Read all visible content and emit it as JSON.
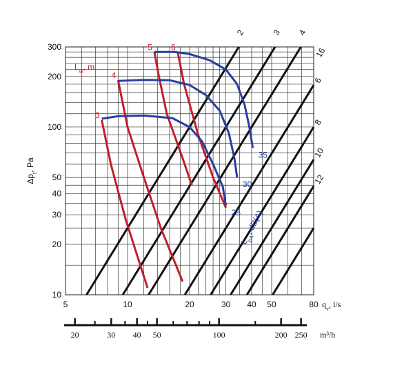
{
  "colors": {
    "black_lines": "#111111",
    "red_lines": "#c0202a",
    "blue_lines": "#2a3ea0",
    "grid": "#333333"
  },
  "chart_data": {
    "type": "line",
    "xlabel": "q",
    "xlabel_sub": "v",
    "xlabel_unit": ", l/s",
    "ylabel": "Δp",
    "ylabel_sub": "t",
    "ylabel_unit": ", Pa",
    "x_scale": "log",
    "y_scale": "log",
    "xlim": [
      5,
      80
    ],
    "ylim": [
      10,
      300
    ],
    "x_ticks": [
      5,
      10,
      20,
      30,
      40,
      50,
      80
    ],
    "y_ticks": [
      10,
      20,
      30,
      40,
      50,
      100,
      200,
      300
    ],
    "y_minor_lines": [
      15,
      25,
      35,
      45,
      60,
      70,
      80,
      90,
      120,
      140,
      160,
      180,
      220,
      240,
      260,
      280
    ],
    "x_minor_lines": [
      6,
      7,
      8,
      9,
      12,
      14,
      16,
      18,
      22,
      24,
      26,
      28,
      35,
      45,
      60,
      70
    ],
    "m3h_axis": {
      "unit": "m³/h",
      "ticks": [
        20,
        30,
        40,
        50,
        100,
        200,
        250
      ],
      "minor": [
        25,
        35,
        45,
        60,
        70,
        80,
        90,
        150,
        300
      ]
    },
    "k_lines": {
      "labels": [
        "2",
        "3",
        "4",
        "6",
        "8",
        "10",
        "12",
        "16"
      ],
      "values": [
        2,
        3,
        4,
        6,
        8,
        10,
        12,
        16
      ]
    },
    "lw_legend": {
      "text": "L",
      "sub": "w",
      "unit": ", m"
    },
    "red_lines": [
      {
        "label": "3",
        "points": [
          [
            7.5,
            110
          ],
          [
            8.3,
            60
          ],
          [
            9.8,
            28
          ],
          [
            12.5,
            11
          ]
        ]
      },
      {
        "label": "4",
        "points": [
          [
            9.0,
            190
          ],
          [
            10.0,
            100
          ],
          [
            12.0,
            50
          ],
          [
            14.5,
            25
          ],
          [
            18.5,
            12
          ]
        ]
      },
      {
        "label": "5",
        "points": [
          [
            13.5,
            280
          ],
          [
            14.2,
            200
          ],
          [
            15.5,
            120
          ],
          [
            18.5,
            65
          ],
          [
            20.5,
            45
          ]
        ]
      },
      {
        "label": "6",
        "points": [
          [
            17.5,
            280
          ],
          [
            18.8,
            180
          ],
          [
            22.0,
            90
          ],
          [
            26.0,
            50
          ],
          [
            30.0,
            33
          ]
        ]
      }
    ],
    "blue_lines": [
      {
        "label": "25",
        "points": [
          [
            7.5,
            112
          ],
          [
            9.0,
            116
          ],
          [
            12.0,
            117
          ],
          [
            16.5,
            113
          ],
          [
            20.0,
            100
          ],
          [
            23.0,
            82
          ],
          [
            26.0,
            60
          ],
          [
            29.0,
            44
          ],
          [
            30.0,
            34
          ]
        ]
      },
      {
        "label": "30",
        "points": [
          [
            9.0,
            188
          ],
          [
            12.0,
            191
          ],
          [
            16.0,
            190
          ],
          [
            20.0,
            178
          ],
          [
            24.0,
            155
          ],
          [
            28.0,
            125
          ],
          [
            31.0,
            92
          ],
          [
            33.0,
            65
          ],
          [
            34.0,
            50
          ]
        ]
      },
      {
        "label": "35",
        "points": [
          [
            13.5,
            280
          ],
          [
            17.0,
            280
          ],
          [
            20.0,
            272
          ],
          [
            25.0,
            250
          ],
          [
            30.0,
            220
          ],
          [
            34.0,
            180
          ],
          [
            37.0,
            135
          ],
          [
            39.0,
            100
          ],
          [
            40.5,
            75
          ]
        ]
      }
    ],
    "lp_axis_label": {
      "text": "L",
      "sub": "pA",
      "unit": ", dB(A)"
    }
  }
}
